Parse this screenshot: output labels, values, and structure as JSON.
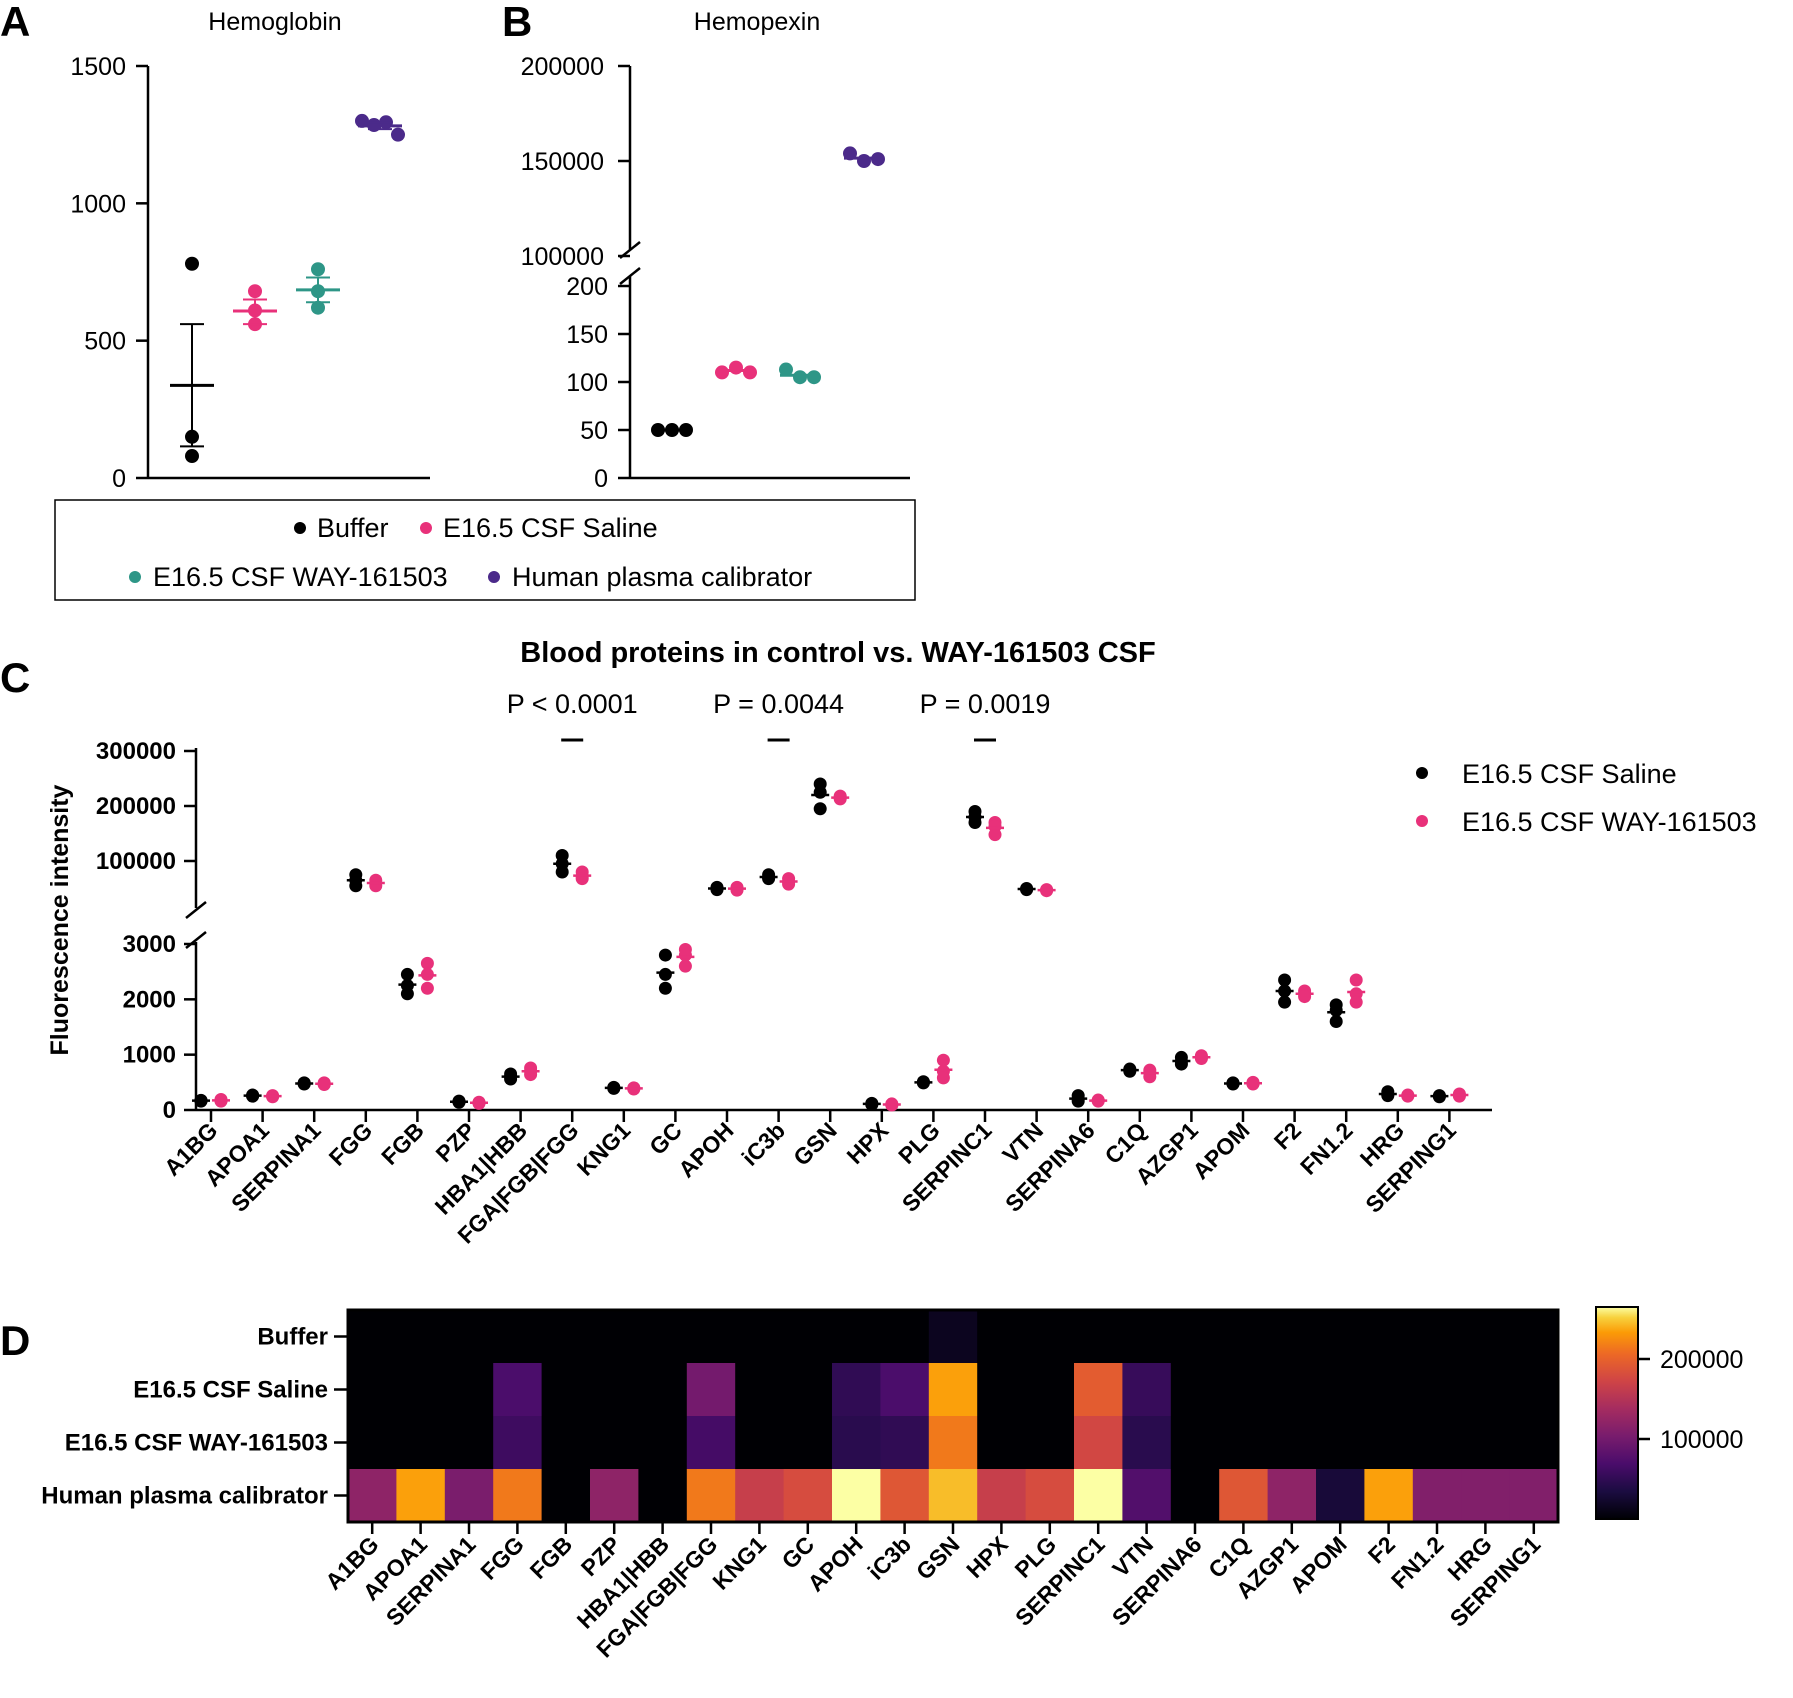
{
  "colors": {
    "buffer": "#000000",
    "saline": "#e8317a",
    "way": "#2e9687",
    "calibrator": "#4b2a8a"
  },
  "panel_labels": {
    "a": "A",
    "b": "B",
    "c": "C",
    "d": "D"
  },
  "legend_ab": {
    "items": [
      {
        "key": "buffer",
        "label": "Buffer"
      },
      {
        "key": "saline",
        "label": "E16.5 CSF Saline"
      },
      {
        "key": "way",
        "label": "E16.5 CSF WAY-161503"
      },
      {
        "key": "calibrator",
        "label": "Human plasma calibrator"
      }
    ]
  },
  "legend_c": {
    "items": [
      {
        "key": "buffer",
        "label": "E16.5 CSF Saline"
      },
      {
        "key": "saline",
        "label": "E16.5 CSF WAY-161503"
      }
    ]
  },
  "chart_data": [
    {
      "id": "A",
      "type": "scatter",
      "title": "Hemoglobin",
      "ylim": [
        0,
        1500
      ],
      "yticks": [
        "0",
        "500",
        "1000",
        "1500"
      ],
      "groups": [
        {
          "name": "Buffer",
          "color": "#000000",
          "points": [
            780,
            150,
            80
          ],
          "mean": 337,
          "sem": [
            115,
            560
          ]
        },
        {
          "name": "E16.5 CSF Saline",
          "color": "#e8317a",
          "points": [
            680,
            610,
            560
          ],
          "mean": 608,
          "sem": [
            560,
            650
          ]
        },
        {
          "name": "E16.5 CSF WAY-161503",
          "color": "#2e9687",
          "points": [
            760,
            680,
            620
          ],
          "mean": 685,
          "sem": [
            640,
            730
          ]
        },
        {
          "name": "Human plasma calibrator",
          "color": "#4b2a8a",
          "points": [
            1300,
            1285,
            1295,
            1250
          ],
          "mean": 1282,
          "sem": [
            1270,
            1295
          ]
        }
      ]
    },
    {
      "id": "B",
      "type": "scatter",
      "title": "Hemopexin",
      "y_lower_ticks": [
        "0",
        "50",
        "100",
        "150",
        "200"
      ],
      "y_upper_ticks": [
        "100000",
        "150000",
        "200000"
      ],
      "lower_range": [
        0,
        200
      ],
      "upper_range": [
        100000,
        200000
      ],
      "groups": [
        {
          "name": "Buffer",
          "color": "#000000",
          "points": [
            50,
            50,
            50
          ],
          "mean": 50
        },
        {
          "name": "E16.5 CSF Saline",
          "color": "#e8317a",
          "points": [
            110,
            115,
            110
          ],
          "mean": 112
        },
        {
          "name": "E16.5 CSF WAY-161503",
          "color": "#2e9687",
          "points": [
            113,
            105,
            105
          ],
          "mean": 107
        },
        {
          "name": "Human plasma calibrator",
          "color": "#4b2a8a",
          "points": [
            154000,
            150000,
            151000
          ],
          "mean": 151500
        }
      ]
    },
    {
      "id": "C",
      "type": "scatter",
      "title": "Blood proteins in control vs.  WAY-161503  CSF",
      "ylabel": "Fluorescence intensity",
      "y_lower_ticks": [
        "0",
        "1000",
        "2000",
        "3000"
      ],
      "y_upper_ticks": [
        "100000",
        "200000",
        "300000"
      ],
      "annotations": [
        {
          "text": "P < 0.0001",
          "category": "FGA|FGB|FGG"
        },
        {
          "text": "P = 0.0044",
          "category": "iC3b"
        },
        {
          "text": "P = 0.0019",
          "category": "SERPINC1"
        }
      ],
      "categories": [
        "A1BG",
        "APOA1",
        "SERPINA1",
        "FGG",
        "FGB",
        "PZP",
        "HBA1|HBB",
        "FGA|FGB|FGG",
        "KNG1",
        "GC",
        "APOH",
        "iC3b",
        "GSN",
        "HPX",
        "PLG",
        "SERPINC1",
        "VTN",
        "SERPINA6",
        "C1Q",
        "AZGP1",
        "APOM",
        "F2",
        "FN1.2",
        "HRG",
        "SERPING1"
      ],
      "series": [
        {
          "name": "E16.5 CSF Saline",
          "values": [
            [
              170,
              160,
              175
            ],
            [
              260,
              250,
              270
            ],
            [
              480,
              470,
              490
            ],
            [
              75000,
              65000,
              55000
            ],
            [
              2450,
              2250,
              2100
            ],
            [
              150,
              140,
              160
            ],
            [
              650,
              600,
              560
            ],
            [
              110000,
              95000,
              80000
            ],
            [
              410,
              400,
              390
            ],
            [
              2800,
              2450,
              2200
            ],
            [
              52000,
              50000,
              48000
            ],
            [
              75000,
              70000,
              68000
            ],
            [
              240000,
              225000,
              195000
            ],
            [
              110,
              100,
              120
            ],
            [
              490,
              510,
              500
            ],
            [
              190000,
              180000,
              170000
            ],
            [
              50000,
              49000,
              48000
            ],
            [
              260,
              200,
              160
            ],
            [
              740,
              700,
              720
            ],
            [
              950,
              880,
              830
            ],
            [
              480,
              470,
              490
            ],
            [
              2350,
              2150,
              1950
            ],
            [
              1900,
              1800,
              1600
            ],
            [
              330,
              280,
              260
            ],
            [
              250,
              240,
              260
            ]
          ]
        },
        {
          "name": "E16.5 CSF WAY-161503",
          "values": [
            [
              190,
              170,
              160
            ],
            [
              260,
              250,
              240
            ],
            [
              490,
              470,
              460
            ],
            [
              65000,
              60000,
              55000
            ],
            [
              2650,
              2450,
              2200
            ],
            [
              140,
              130,
              120
            ],
            [
              760,
              700,
              640
            ],
            [
              80000,
              72000,
              68000
            ],
            [
              400,
              390,
              380
            ],
            [
              2900,
              2800,
              2600
            ],
            [
              52000,
              50000,
              47000
            ],
            [
              68000,
              62000,
              58000
            ],
            [
              218000,
              215000,
              213000
            ],
            [
              110,
              100,
              90
            ],
            [
              900,
              700,
              580
            ],
            [
              170000,
              163000,
              148000
            ],
            [
              48000,
              47000,
              46000
            ],
            [
              180,
              170,
              160
            ],
            [
              720,
              680,
              600
            ],
            [
              980,
              950,
              930
            ],
            [
              500,
              480,
              470
            ],
            [
              2150,
              2100,
              2050
            ],
            [
              2350,
              2100,
              1950
            ],
            [
              270,
              260,
              250
            ],
            [
              290,
              270,
              250
            ]
          ]
        }
      ]
    },
    {
      "id": "D",
      "type": "heatmap",
      "rows": [
        "Buffer",
        "E16.5 CSF Saline",
        "E16.5 CSF WAY-161503",
        "Human plasma calibrator"
      ],
      "columns": [
        "A1BG",
        "APOA1",
        "SERPINA1",
        "FGG",
        "FGB",
        "PZP",
        "HBA1|HBB",
        "FGA|FGB|FGG",
        "KNG1",
        "GC",
        "APOH",
        "iC3b",
        "GSN",
        "HPX",
        "PLG",
        "SERPINC1",
        "VTN",
        "SERPINA6",
        "C1Q",
        "AZGP1",
        "APOM",
        "F2",
        "FN1.2",
        "HRG",
        "SERPING1"
      ],
      "values": [
        [
          0,
          0,
          0,
          0,
          0,
          0,
          0,
          0,
          0,
          0,
          0,
          0,
          15000,
          0,
          0,
          0,
          0,
          0,
          0,
          0,
          0,
          0,
          0,
          0,
          0
        ],
        [
          0,
          0,
          0,
          70000,
          0,
          0,
          0,
          100000,
          0,
          0,
          50000,
          70000,
          235000,
          0,
          0,
          195000,
          55000,
          0,
          0,
          0,
          0,
          0,
          0,
          0,
          0
        ],
        [
          0,
          0,
          0,
          60000,
          0,
          0,
          0,
          65000,
          0,
          0,
          45000,
          50000,
          215000,
          0,
          0,
          175000,
          45000,
          0,
          0,
          0,
          0,
          0,
          0,
          0,
          0
        ],
        [
          120000,
          235000,
          105000,
          215000,
          0,
          120000,
          0,
          215000,
          165000,
          180000,
          265000,
          190000,
          245000,
          165000,
          180000,
          275000,
          75000,
          0,
          190000,
          120000,
          30000,
          235000,
          110000,
          110000,
          110000
        ]
      ],
      "colorbar_range": [
        0,
        265000
      ],
      "colorbar_ticks": [
        "100000",
        "200000"
      ]
    }
  ]
}
